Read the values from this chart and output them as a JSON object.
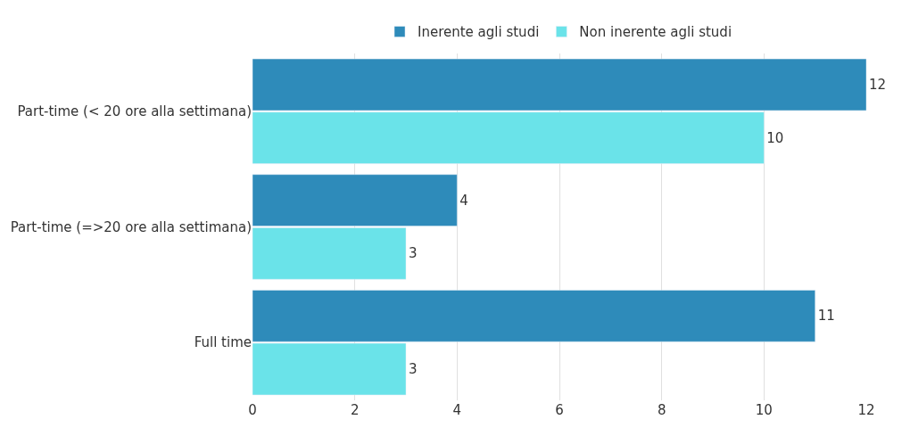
{
  "chart_data": {
    "type": "bar",
    "orientation": "horizontal",
    "categories": [
      "Part-time (< 20 ore alla settimana)",
      "Part-time (=>20 ore alla settimana)",
      "Full time"
    ],
    "series": [
      {
        "name": "Inerente agli studi",
        "color": "#2e8bba",
        "values": [
          12,
          4,
          11
        ]
      },
      {
        "name": "Non inerente agli studi",
        "color": "#6ae3e9",
        "values": [
          10,
          3,
          3
        ]
      }
    ],
    "xlim": [
      0,
      12
    ],
    "xticks": [
      0,
      2,
      4,
      6,
      8,
      10,
      12
    ],
    "grid": "x",
    "legend": "top",
    "data_labels": true
  }
}
